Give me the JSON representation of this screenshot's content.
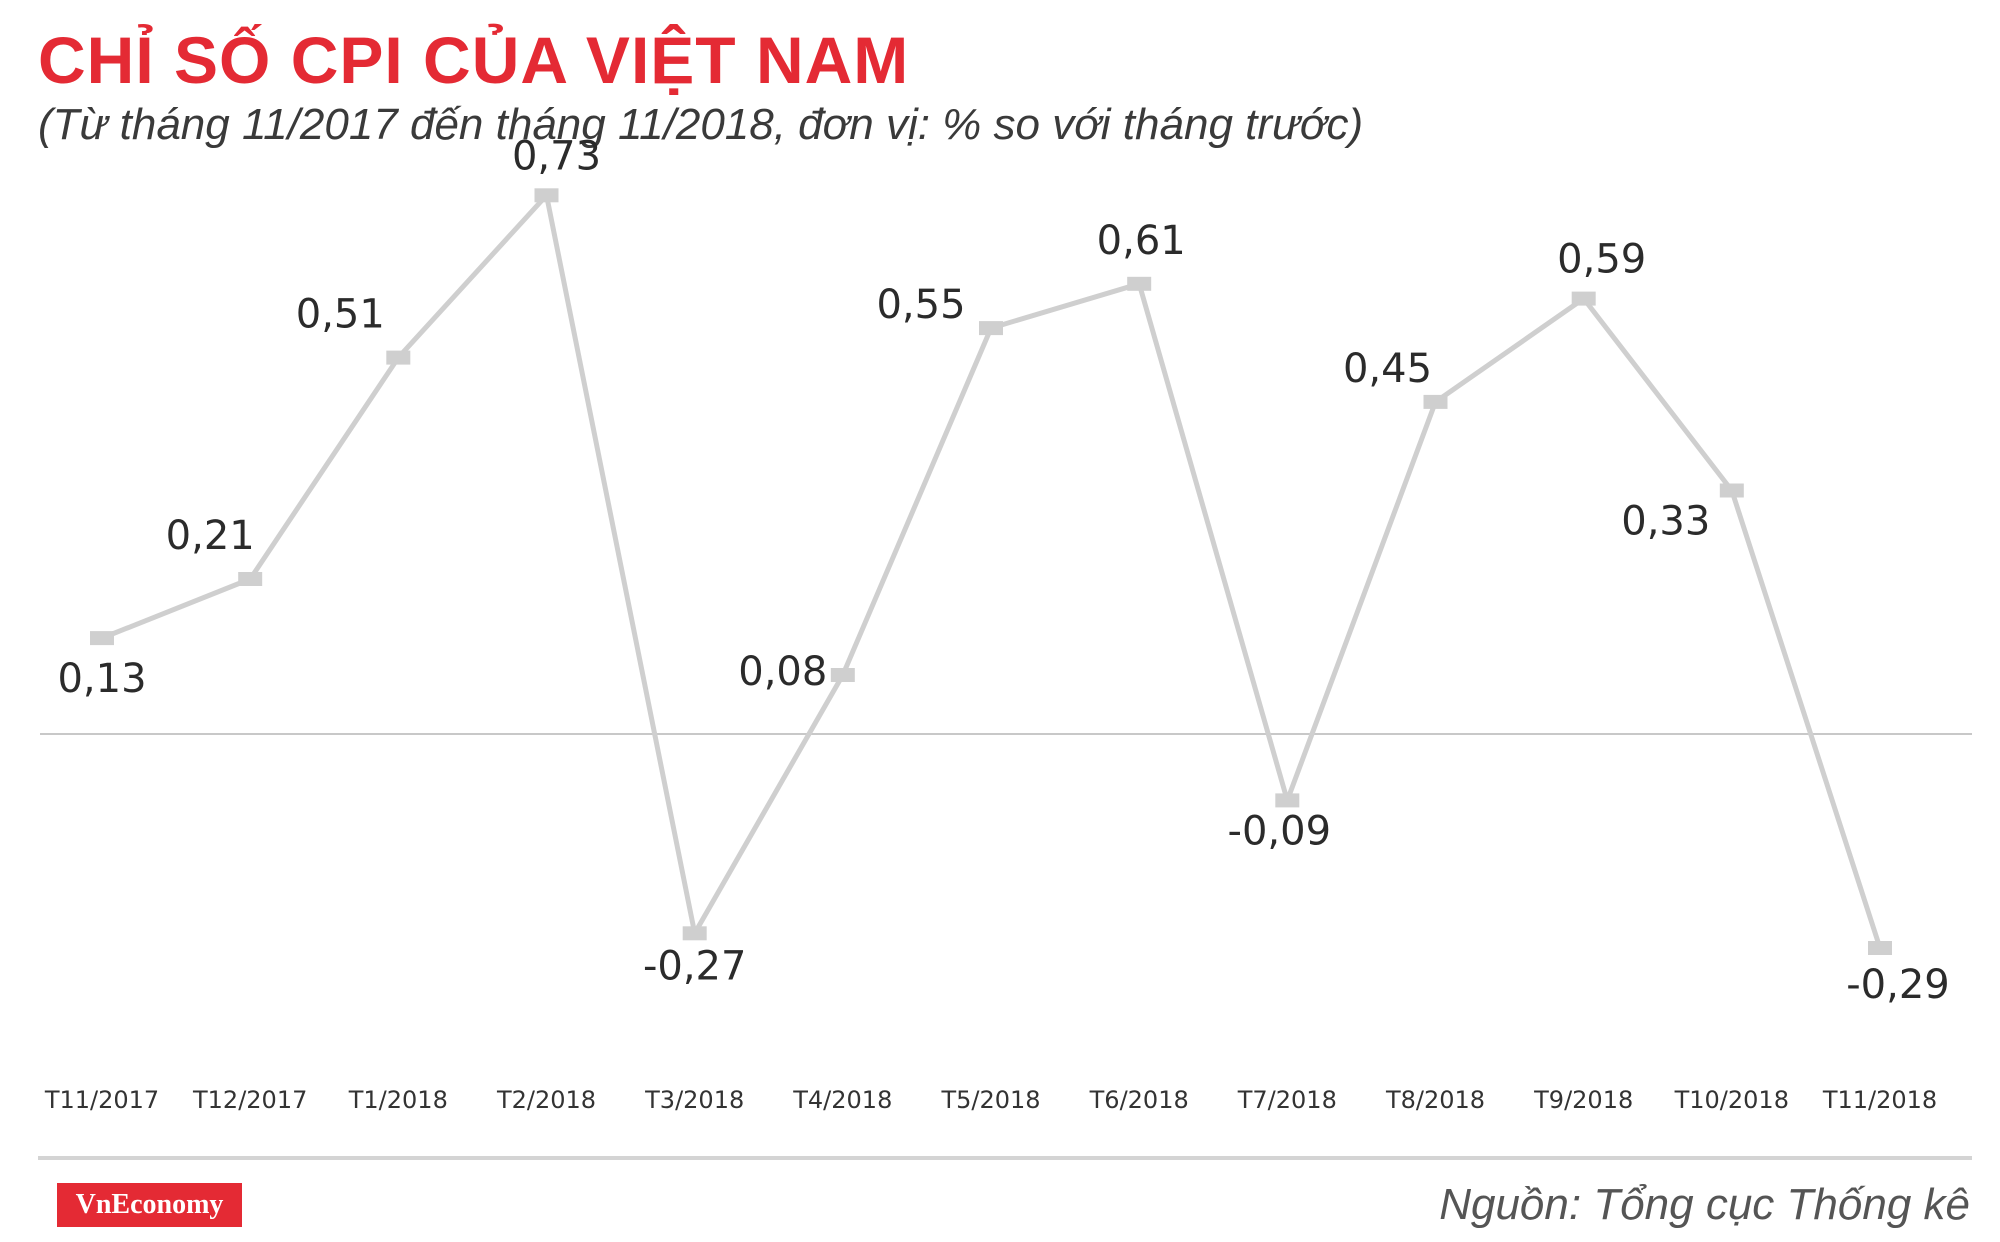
{
  "title": "CHỈ SỐ CPI CỦA VIỆT NAM",
  "subtitle": "(Từ tháng 11/2017 đến tháng 11/2018, đơn vị: % so với tháng trước)",
  "source": "Nguồn: Tổng cục Thống kê",
  "logo": "VnEconomy",
  "colors": {
    "title": "#e42a34",
    "line": "#cfcfcf",
    "marker": "#cfcfcf",
    "zero_line": "#c8c8c8"
  },
  "chart_data": {
    "type": "line",
    "title": "CHỈ SỐ CPI CỦA VIỆT NAM",
    "subtitle": "(Từ tháng 11/2017 đến tháng 11/2018, đơn vị: % so với tháng trước)",
    "xlabel": "",
    "ylabel": "",
    "categories": [
      "T11/2017",
      "T12/2017",
      "T1/2018",
      "T2/2018",
      "T3/2018",
      "T4/2018",
      "T5/2018",
      "T6/2018",
      "T7/2018",
      "T8/2018",
      "T9/2018",
      "T10/2018",
      "T11/2018"
    ],
    "values": [
      0.13,
      0.21,
      0.51,
      0.73,
      -0.27,
      0.08,
      0.55,
      0.61,
      -0.09,
      0.45,
      0.59,
      0.33,
      -0.29
    ],
    "value_labels": [
      "0,13",
      "0,21",
      "0,51",
      "0,73",
      "-0,27",
      "0,08",
      "0,55",
      "0,61",
      "-0,09",
      "0,45",
      "0,59",
      "0,33",
      "-0,29"
    ],
    "ylim": [
      -0.4,
      0.8
    ],
    "grid": false,
    "zero_line": true,
    "legend": "none"
  }
}
